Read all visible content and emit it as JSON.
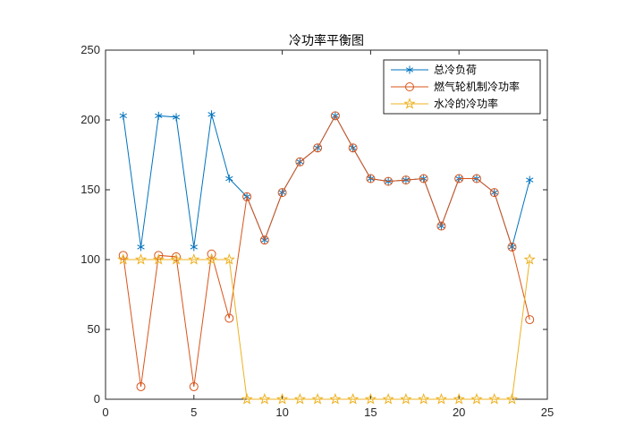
{
  "chart_data": {
    "type": "line",
    "title": "冷功率平衡图",
    "xlabel": "",
    "ylabel": "",
    "xlim": [
      0,
      25
    ],
    "ylim": [
      0,
      250
    ],
    "xticks": [
      0,
      5,
      10,
      15,
      20,
      25
    ],
    "yticks": [
      0,
      50,
      100,
      150,
      200,
      250
    ],
    "grid": false,
    "legend_position": "top-right",
    "x": [
      1,
      2,
      3,
      4,
      5,
      6,
      7,
      8,
      9,
      10,
      11,
      12,
      13,
      14,
      15,
      16,
      17,
      18,
      19,
      20,
      21,
      22,
      23,
      24
    ],
    "series": [
      {
        "name": "总冷负荷",
        "color": "#0072BD",
        "marker": "asterisk",
        "values": [
          203,
          109,
          203,
          202,
          109,
          204,
          158,
          145,
          114,
          148,
          170,
          180,
          203,
          180,
          158,
          156,
          157,
          158,
          124,
          158,
          158,
          148,
          109,
          157
        ]
      },
      {
        "name": "燃气轮机制冷功率",
        "color": "#D95319",
        "marker": "circle",
        "values": [
          103,
          9,
          103,
          102,
          9,
          104,
          58,
          145,
          114,
          148,
          170,
          180,
          203,
          180,
          158,
          156,
          157,
          158,
          124,
          158,
          158,
          148,
          109,
          57
        ]
      },
      {
        "name": "水冷的冷功率",
        "color": "#EDB120",
        "marker": "star",
        "values": [
          100,
          100,
          100,
          100,
          100,
          100,
          100,
          0,
          0,
          0,
          0,
          0,
          0,
          0,
          0,
          0,
          0,
          0,
          0,
          0,
          0,
          0,
          0,
          100
        ]
      }
    ]
  }
}
